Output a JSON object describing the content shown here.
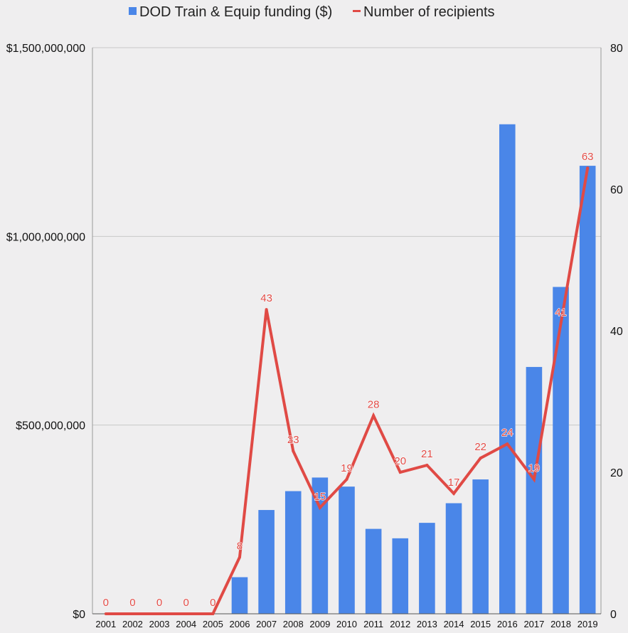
{
  "chart_data": {
    "type": "bar",
    "title": "",
    "xlabel": "",
    "ylabel": "",
    "categories": [
      "2001",
      "2002",
      "2003",
      "2004",
      "2005",
      "2006",
      "2007",
      "2008",
      "2009",
      "2010",
      "2011",
      "2012",
      "2013",
      "2014",
      "2015",
      "2016",
      "2017",
      "2018",
      "2019"
    ],
    "series": [
      {
        "name": "DOD Train & Equip funding ($)",
        "type": "bar",
        "axis": "left",
        "color": "#4a86e8",
        "values": [
          0,
          0,
          0,
          0,
          0,
          97000000,
          275000000,
          325000000,
          361000000,
          337000000,
          225000000,
          200000000,
          241000000,
          293000000,
          356000000,
          1297000000,
          654000000,
          866000000,
          1187000000
        ]
      },
      {
        "name": "Number of recipients",
        "type": "line",
        "axis": "right",
        "color": "#e04a45",
        "values": [
          0,
          0,
          0,
          0,
          0,
          8,
          43,
          23,
          15,
          19,
          28,
          20,
          21,
          17,
          22,
          24,
          19,
          41,
          63
        ]
      }
    ],
    "y_left": {
      "ylim": [
        0,
        1500000000
      ],
      "ticks": [
        0,
        500000000,
        1000000000,
        1500000000
      ],
      "tick_labels": [
        "$0",
        "$500,000,000",
        "$1,000,000,000",
        "$1,500,000,000"
      ]
    },
    "y_right": {
      "ylim": [
        0,
        80
      ],
      "ticks": [
        0,
        20,
        40,
        60,
        80
      ],
      "tick_labels": [
        "0",
        "20",
        "40",
        "60",
        "80"
      ]
    },
    "legend_position": "top",
    "grid": true
  }
}
